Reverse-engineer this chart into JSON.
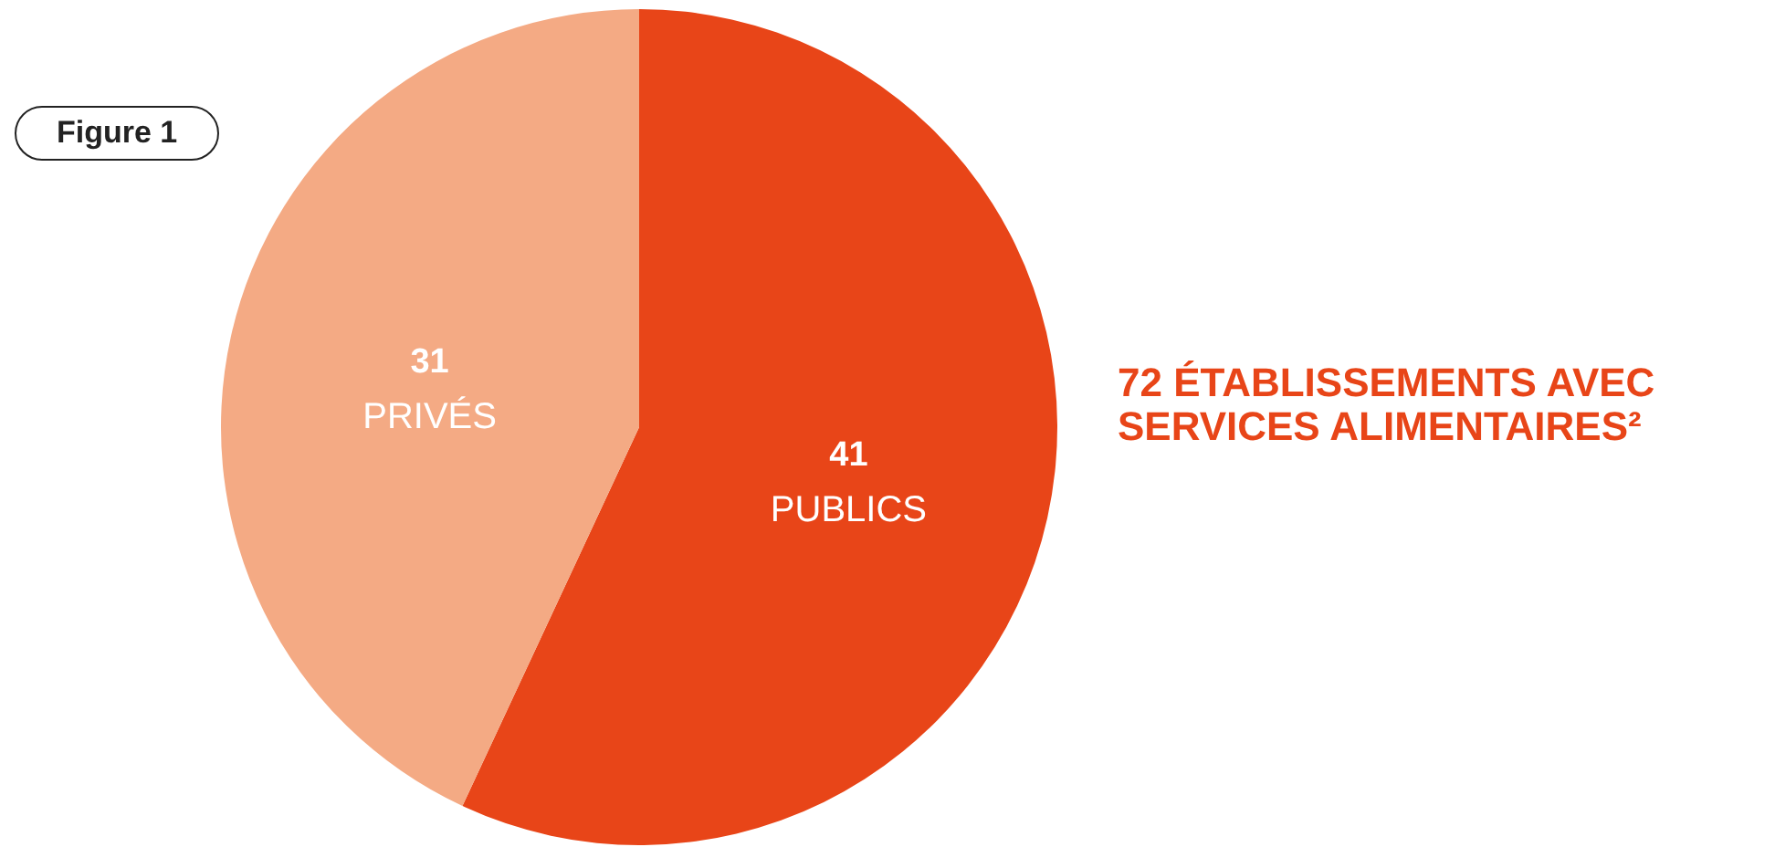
{
  "chart_data": {
    "type": "pie",
    "title": "72 ÉTABLISSEMENTS AVEC SERVICES ALIMENTAIRES²",
    "annotations": [
      "Figure 1"
    ],
    "categories": [
      "PUBLICS",
      "PRIVÉS"
    ],
    "values": [
      41,
      31
    ],
    "colors": [
      "#e84518",
      "#f4aa84"
    ],
    "data_labels": true,
    "legend": false
  }
}
